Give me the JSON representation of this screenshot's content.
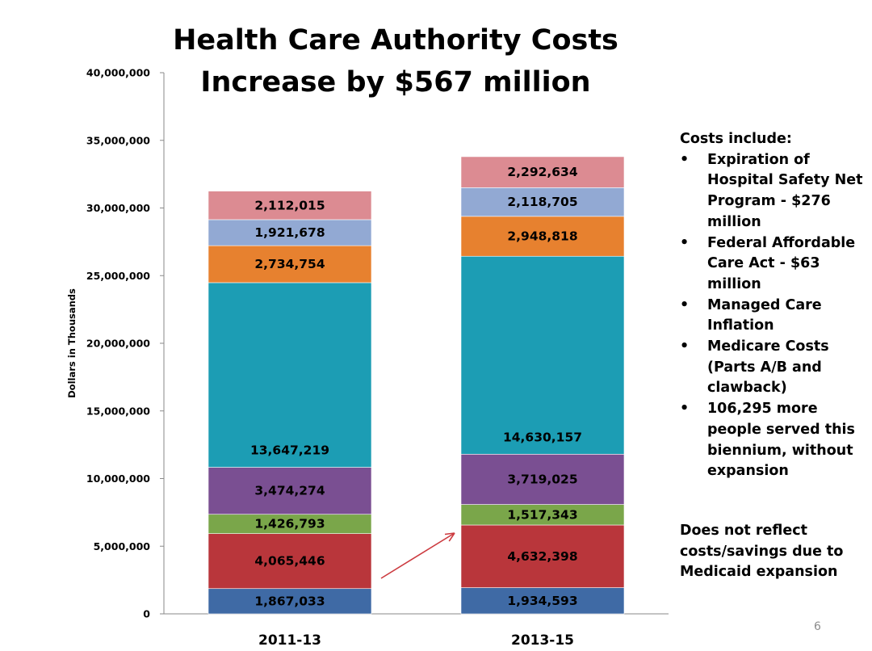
{
  "chart_data": {
    "type": "bar",
    "stacked": true,
    "title": "Health Care Authority Costs Increase by $567 million",
    "title_lines": [
      "Health Care Authority Costs",
      "Increase by $567 million"
    ],
    "ylabel": "Dollars in Thousands",
    "ylim": [
      0,
      40000000
    ],
    "yticks": [
      0,
      5000000,
      10000000,
      15000000,
      20000000,
      25000000,
      30000000,
      35000000,
      40000000
    ],
    "ytick_labels": [
      "0",
      "5,000,000",
      "10,000,000",
      "15,000,000",
      "20,000,000",
      "25,000,000",
      "30,000,000",
      "35,000,000",
      "40,000,000"
    ],
    "categories": [
      "2011-13",
      "2013-15"
    ],
    "series": [
      {
        "values": [
          1867033,
          1934593
        ],
        "labels": [
          "1,867,033",
          "1,934,593"
        ],
        "color": "#3f6aa5"
      },
      {
        "values": [
          4065446,
          4632398
        ],
        "labels": [
          "4,065,446",
          "4,632,398"
        ],
        "color": "#b9363b"
      },
      {
        "values": [
          1426793,
          1517343
        ],
        "labels": [
          "1,426,793",
          "1,517,343"
        ],
        "color": "#7aa64a"
      },
      {
        "values": [
          3474274,
          3719025
        ],
        "labels": [
          "3,474,274",
          "3,719,025"
        ],
        "color": "#7a4f92"
      },
      {
        "values": [
          13647219,
          14630157
        ],
        "labels": [
          "13,647,219",
          "14,630,157"
        ],
        "color": "#1c9db4"
      },
      {
        "values": [
          2734754,
          2948818
        ],
        "labels": [
          "2,734,754",
          "2,948,818"
        ],
        "color": "#e7812f"
      },
      {
        "values": [
          1921678,
          2118705
        ],
        "labels": [
          "1,921,678",
          "2,118,705"
        ],
        "color": "#92a9d3"
      },
      {
        "values": [
          2112015,
          2292634
        ],
        "labels": [
          "2,112,015",
          "2,292,634"
        ],
        "color": "#dc8b92"
      }
    ],
    "grid": false,
    "annotation": {
      "type": "arrow",
      "from_category": "2011-13",
      "to_category": "2013-15",
      "color": "#cc3a3f"
    }
  },
  "notes": {
    "heading": "Costs include:",
    "items": [
      "Expiration of Hospital Safety Net Program - $276 million",
      "Federal Affordable Care Act - $63 million",
      "Managed Care Inflation",
      "Medicare Costs (Parts A/B and clawback)",
      "106,295 more people served this biennium, without expansion"
    ],
    "footnote": "Does not reflect costs/savings due to Medicaid expansion"
  },
  "page_number": "6"
}
